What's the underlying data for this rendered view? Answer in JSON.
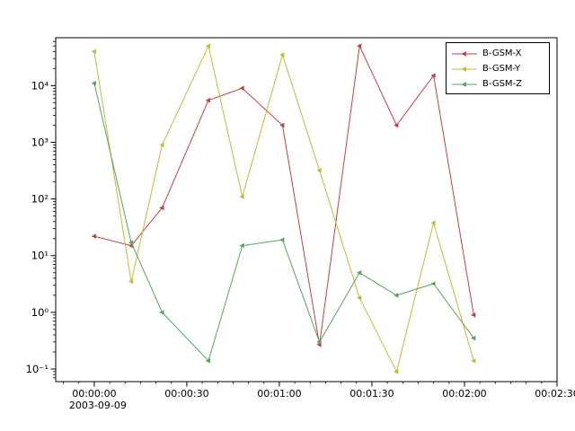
{
  "chart_data": {
    "type": "line",
    "title": "",
    "xlabel": "",
    "ylabel": "",
    "background": "#ffffff",
    "axes_color": "#000000",
    "grid": false,
    "marker": "left-triangle",
    "x_axis": {
      "tick_seconds": [
        0,
        30,
        60,
        90,
        120,
        150
      ],
      "tick_labels": [
        "00:00:00",
        "00:00:30",
        "00:01:00",
        "00:01:30",
        "00:02:00",
        "00:02:30"
      ],
      "date_label": "2003-09-09",
      "xlim_seconds": [
        -12.5,
        150
      ],
      "minor_tick_step_seconds": 5
    },
    "y_axis": {
      "scale": "log",
      "tick_exponents": [
        -1,
        0,
        1,
        2,
        3,
        4
      ],
      "tick_labels": [
        "10⁻¹",
        "10⁰",
        "10¹",
        "10²",
        "10³",
        "10⁴"
      ],
      "ylim": [
        0.06,
        70000
      ]
    },
    "x_seconds": [
      0,
      12,
      22,
      37,
      48,
      61,
      73,
      86,
      98,
      110,
      123
    ],
    "series": [
      {
        "name": "B-GSM-X",
        "color": "#bf4045",
        "values": [
          22,
          15,
          70,
          5500,
          9000,
          2000,
          0.27,
          50000,
          2000,
          15000,
          0.9
        ]
      },
      {
        "name": "B-GSM-Y",
        "color": "#c2bb3a",
        "values": [
          40000,
          3.5,
          900,
          50000,
          110,
          35000,
          320,
          1.8,
          0.09,
          38,
          0.14
        ]
      },
      {
        "name": "B-GSM-Z",
        "color": "#55a55a",
        "values": [
          11000,
          17,
          1.0,
          0.14,
          15,
          19,
          0.3,
          5,
          2,
          3.2,
          0.35
        ]
      }
    ],
    "legend": {
      "position": "upper right",
      "entries": [
        "B-GSM-X",
        "B-GSM-Y",
        "B-GSM-Z"
      ]
    }
  }
}
